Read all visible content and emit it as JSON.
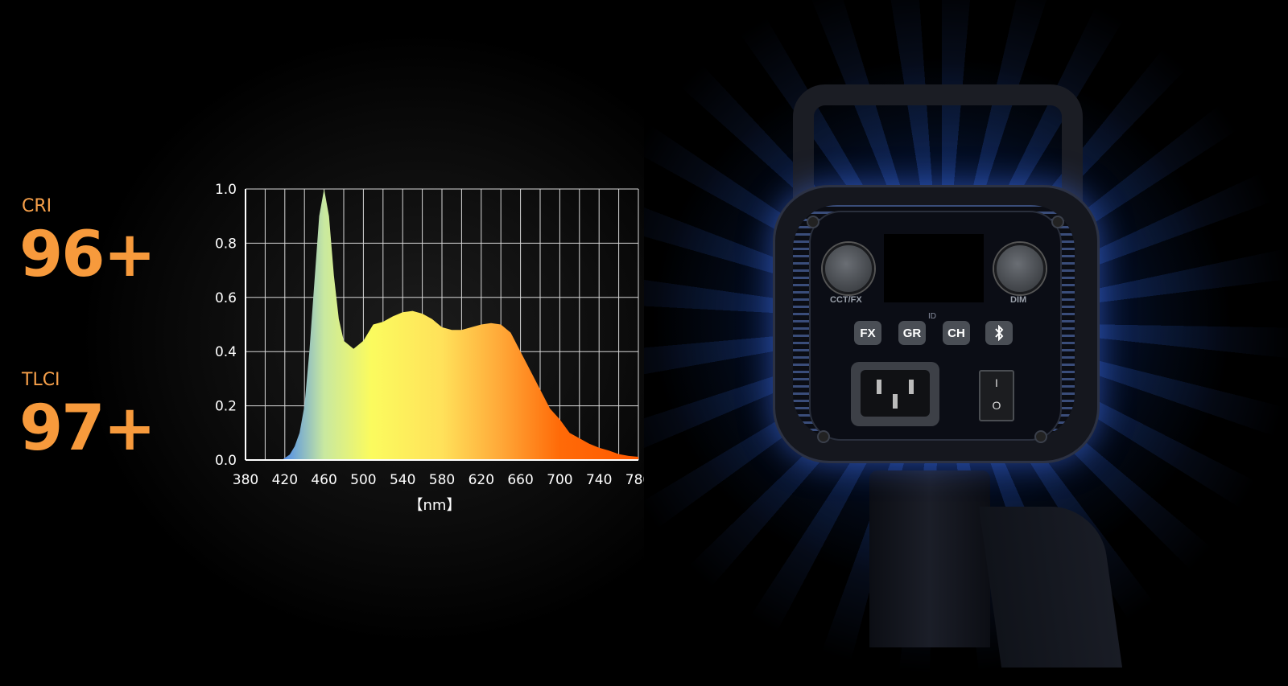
{
  "metrics": [
    {
      "label": "CRI",
      "value": "96+"
    },
    {
      "label": "TLCI",
      "value": "97+"
    }
  ],
  "colors": {
    "accent": "#f79a3c",
    "background": "#000000",
    "glow": "#3c78ff"
  },
  "chart_data": {
    "type": "area",
    "title": "",
    "xlabel": "【nm】",
    "ylabel": "",
    "xlim": [
      380,
      780
    ],
    "ylim": [
      0,
      1.0
    ],
    "grid": true,
    "x_ticks": [
      "380",
      "420",
      "460",
      "500",
      "540",
      "580",
      "620",
      "660",
      "700",
      "740",
      "780"
    ],
    "y_ticks": [
      "0.0",
      "0.2",
      "0.4",
      "0.6",
      "0.8",
      "1.0"
    ],
    "fill": "spectral gradient (blue to orange)",
    "x": [
      380,
      400,
      417,
      425,
      430,
      435,
      440,
      445,
      450,
      455,
      460,
      465,
      470,
      475,
      480,
      490,
      500,
      510,
      520,
      530,
      540,
      550,
      560,
      570,
      580,
      590,
      600,
      610,
      620,
      630,
      640,
      650,
      660,
      670,
      680,
      690,
      700,
      710,
      720,
      730,
      740,
      750,
      760,
      770,
      780
    ],
    "values": [
      0,
      0,
      0,
      0.02,
      0.05,
      0.1,
      0.2,
      0.4,
      0.65,
      0.9,
      1.0,
      0.9,
      0.68,
      0.52,
      0.44,
      0.41,
      0.44,
      0.5,
      0.51,
      0.53,
      0.545,
      0.55,
      0.54,
      0.52,
      0.49,
      0.48,
      0.48,
      0.49,
      0.5,
      0.505,
      0.5,
      0.47,
      0.4,
      0.33,
      0.26,
      0.19,
      0.15,
      0.1,
      0.08,
      0.06,
      0.045,
      0.035,
      0.022,
      0.015,
      0.012
    ]
  },
  "device": {
    "knobs": [
      "CCT/FX",
      "DIM"
    ],
    "buttons": [
      "FX",
      "GR",
      "CH"
    ],
    "bluetooth_icon": "bluetooth-icon",
    "id_label": "ID",
    "switch_on": "I",
    "switch_off": "O"
  }
}
